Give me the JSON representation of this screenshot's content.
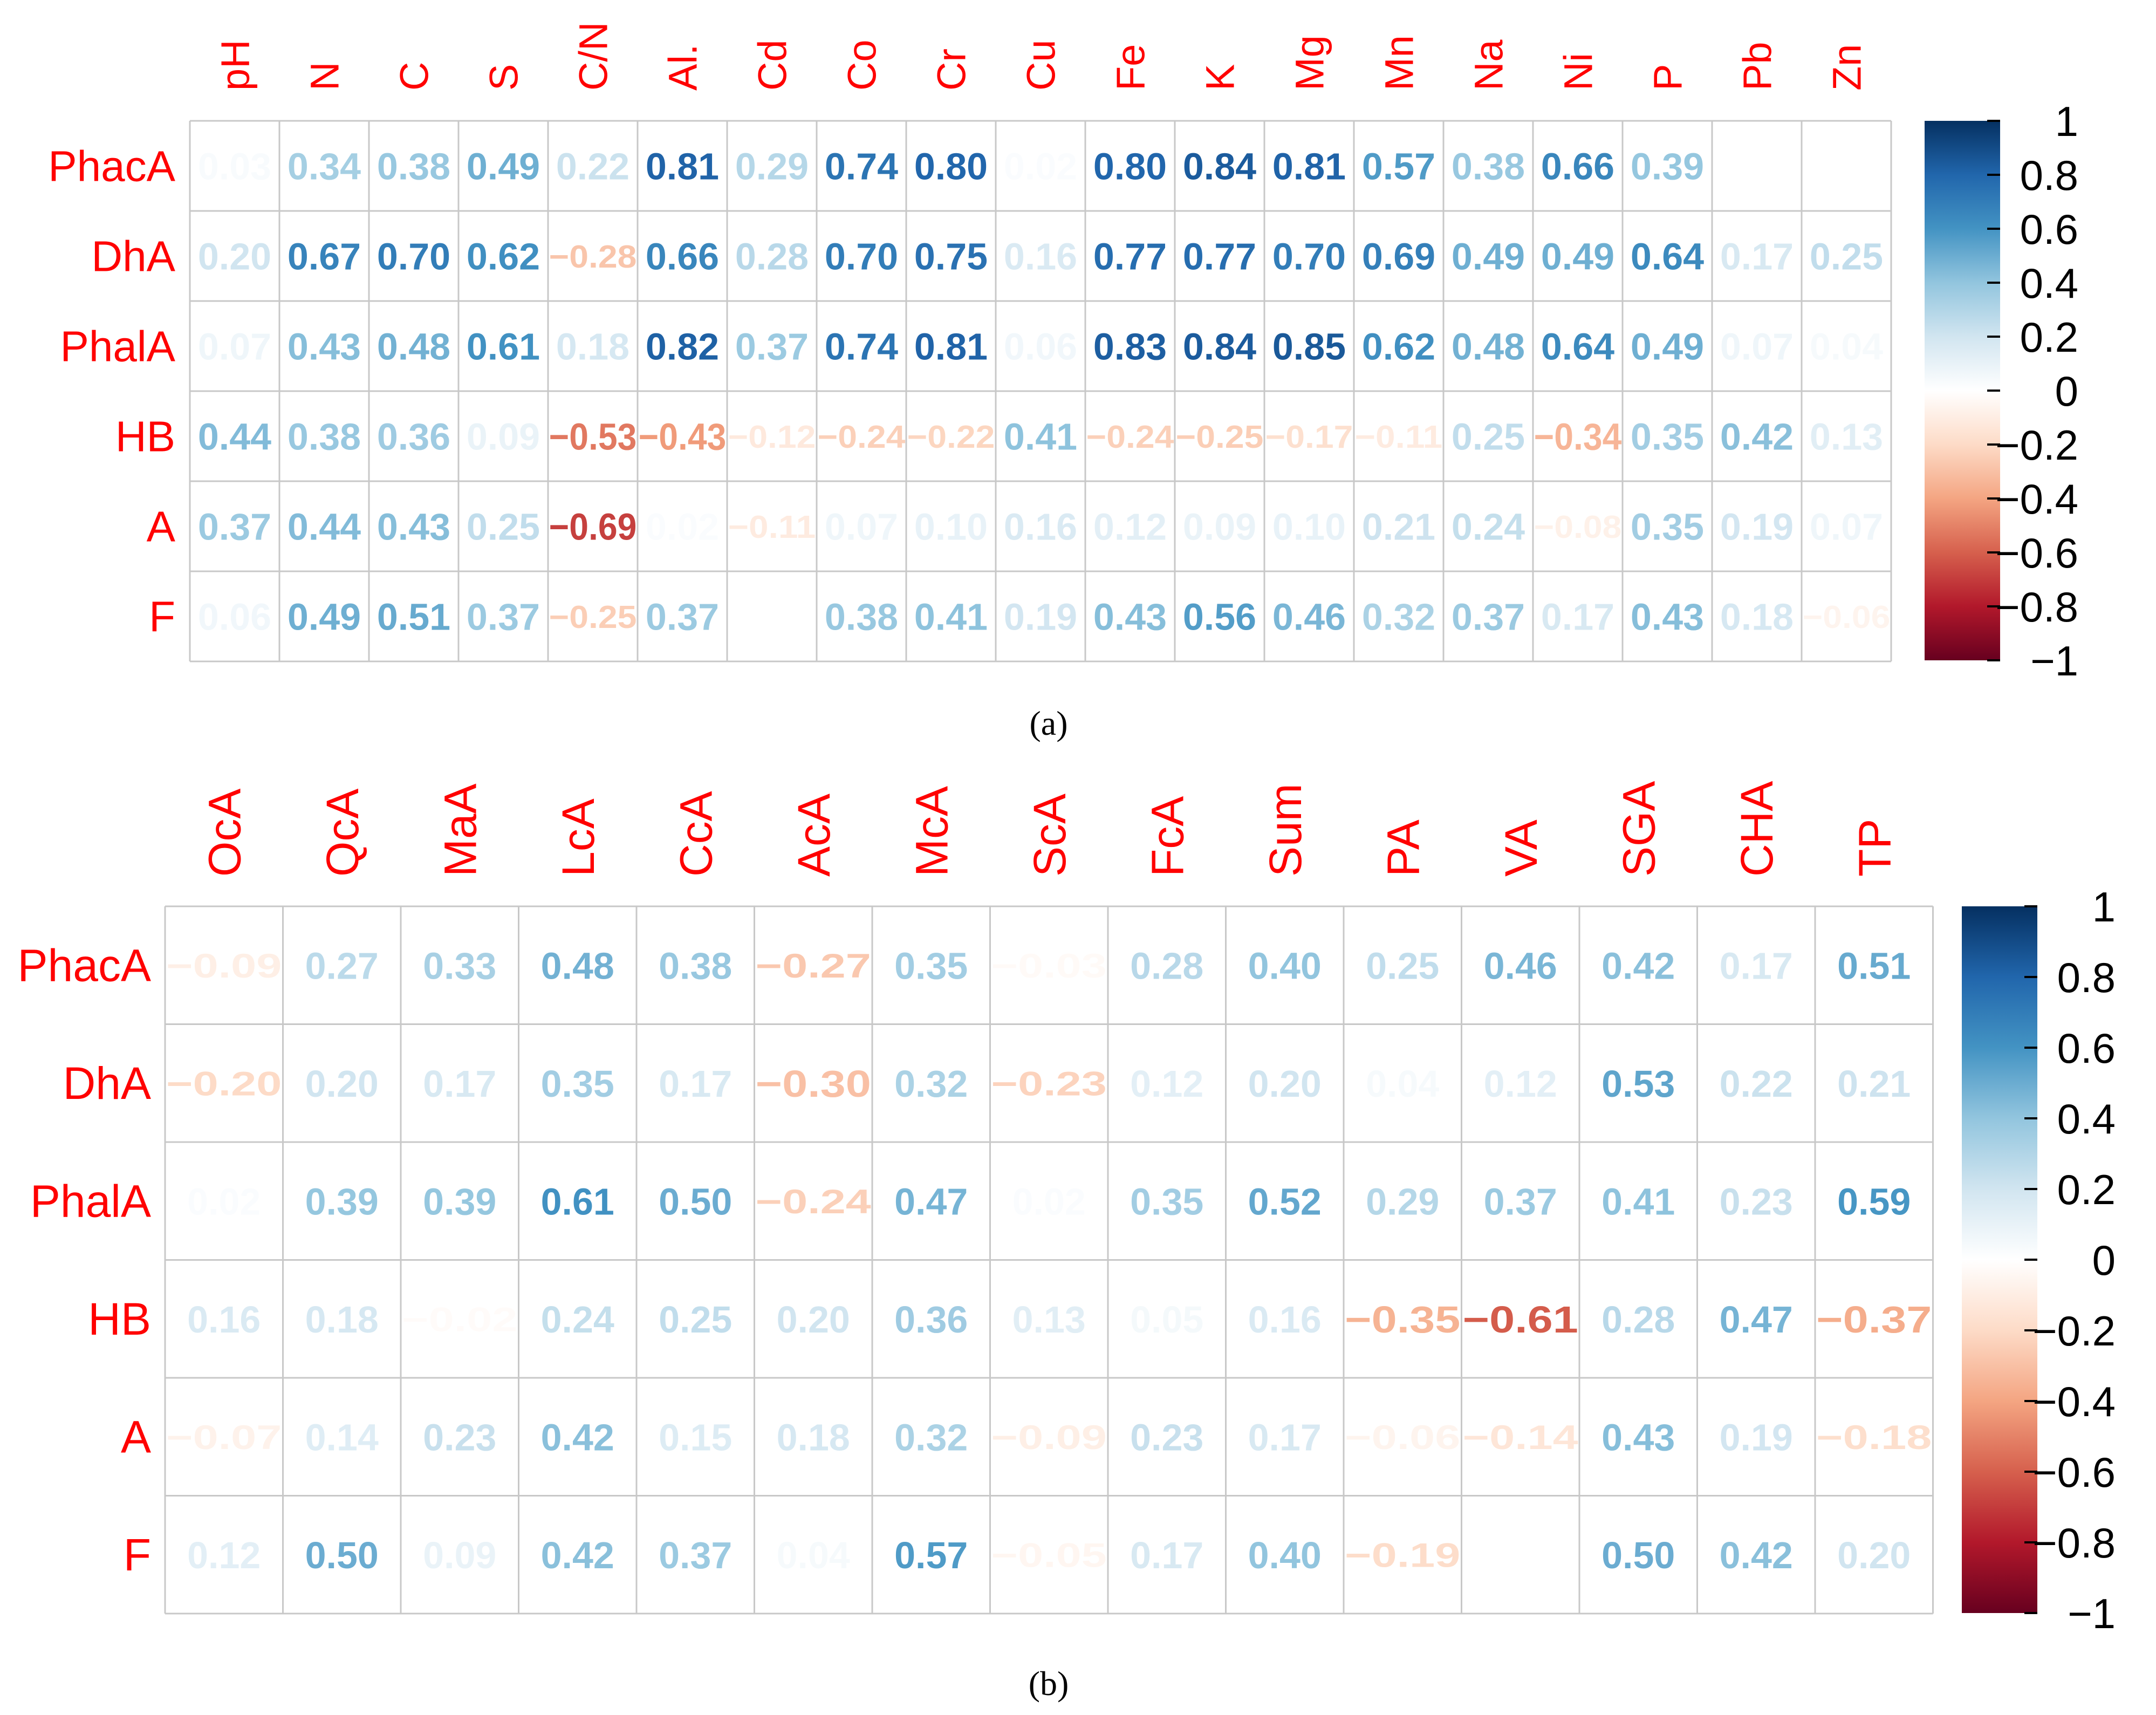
{
  "chart_data": [
    {
      "type": "heatmap",
      "caption": "(a)",
      "columns": [
        "pH",
        "N",
        "C",
        "S",
        "C/N",
        "Al.",
        "Cd",
        "Co",
        "Cr",
        "Cu",
        "Fe",
        "K",
        "Mg",
        "Mn",
        "Na",
        "Ni",
        "P",
        "Pb",
        "Zn"
      ],
      "rows": [
        "PhacA",
        "DhA",
        "PhalA",
        "HB",
        "A",
        "F"
      ],
      "values": [
        [
          0.03,
          0.34,
          0.38,
          0.49,
          0.22,
          0.81,
          0.29,
          0.74,
          0.8,
          0.02,
          0.8,
          0.84,
          0.81,
          0.57,
          0.38,
          0.66,
          0.39,
          0.0,
          0.01
        ],
        [
          0.2,
          0.67,
          0.7,
          0.62,
          -0.28,
          0.66,
          0.28,
          0.7,
          0.75,
          0.16,
          0.77,
          0.77,
          0.7,
          0.69,
          0.49,
          0.49,
          0.64,
          0.17,
          0.25
        ],
        [
          0.07,
          0.43,
          0.48,
          0.61,
          0.18,
          0.82,
          0.37,
          0.74,
          0.81,
          0.06,
          0.83,
          0.84,
          0.85,
          0.62,
          0.48,
          0.64,
          0.49,
          0.07,
          0.04
        ],
        [
          0.44,
          0.38,
          0.36,
          0.09,
          -0.53,
          -0.43,
          -0.12,
          -0.24,
          -0.22,
          0.41,
          -0.24,
          -0.25,
          -0.17,
          -0.11,
          0.25,
          -0.34,
          0.35,
          0.42,
          0.13
        ],
        [
          0.37,
          0.44,
          0.43,
          0.25,
          -0.69,
          0.02,
          -0.11,
          0.07,
          0.1,
          0.16,
          0.12,
          0.09,
          0.1,
          0.21,
          0.24,
          -0.08,
          0.35,
          0.19,
          0.07
        ],
        [
          0.06,
          0.49,
          0.51,
          0.37,
          -0.25,
          0.37,
          0.01,
          0.38,
          0.41,
          0.19,
          0.43,
          0.56,
          0.46,
          0.32,
          0.37,
          0.17,
          0.43,
          0.18,
          -0.06
        ]
      ],
      "value_labels": [
        [
          "0.03",
          "0.34",
          "0.38",
          "0.49",
          "0.22",
          "0.81",
          "0.29",
          "0.74",
          "0.80",
          "0.02",
          "0.80",
          "0.84",
          "0.81",
          "0.57",
          "0.38",
          "0.66",
          "0.39",
          "",
          ""
        ],
        [
          "0.20",
          "0.67",
          "0.70",
          "0.62",
          "−0.28",
          "0.66",
          "0.28",
          "0.70",
          "0.75",
          "0.16",
          "0.77",
          "0.77",
          "0.70",
          "0.69",
          "0.49",
          "0.49",
          "0.64",
          "0.17",
          "0.25"
        ],
        [
          "0.07",
          "0.43",
          "0.48",
          "0.61",
          "0.18",
          "0.82",
          "0.37",
          "0.74",
          "0.81",
          "0.06",
          "0.83",
          "0.84",
          "0.85",
          "0.62",
          "0.48",
          "0.64",
          "0.49",
          "0.07",
          "0.04"
        ],
        [
          "0.44",
          "0.38",
          "0.36",
          "0.09",
          "−0.53",
          "−0.43",
          "−0.12",
          "−0.24",
          "−0.22",
          "0.41",
          "−0.24",
          "−0.25",
          "−0.17",
          "−0.11",
          "0.25",
          "−0.34",
          "0.35",
          "0.42",
          "0.13"
        ],
        [
          "0.37",
          "0.44",
          "0.43",
          "0.25",
          "−0.69",
          "0.02",
          "−0.11",
          "0.07",
          "0.10",
          "0.16",
          "0.12",
          "0.09",
          "0.10",
          "0.21",
          "0.24",
          "−0.08",
          "0.35",
          "0.19",
          "0.07"
        ],
        [
          "0.06",
          "0.49",
          "0.51",
          "0.37",
          "−0.25",
          "0.37",
          "",
          "0.38",
          "0.41",
          "0.19",
          "0.43",
          "0.56",
          "0.46",
          "0.32",
          "0.37",
          "0.17",
          "0.43",
          "0.18",
          "−0.06"
        ]
      ],
      "color_scale": {
        "range": [
          -1,
          1
        ],
        "ticks": [
          "1",
          "0.8",
          "0.6",
          "0.4",
          "0.2",
          "0",
          "−0.2",
          "−0.4",
          "−0.6",
          "−0.8",
          "−1"
        ],
        "negative_end": "#67001f",
        "zero": "#ffffff",
        "positive_end": "#053061"
      },
      "grid": true,
      "legend": "right"
    },
    {
      "type": "heatmap",
      "caption": "(b)",
      "columns": [
        "OcA",
        "QcA",
        "MaA",
        "LcA",
        "CcA",
        "AcA",
        "McA",
        "ScA",
        "FcA",
        "Sum",
        "PA",
        "VA",
        "SGA",
        "CHA",
        "TP"
      ],
      "rows": [
        "PhacA",
        "DhA",
        "PhalA",
        "HB",
        "A",
        "F"
      ],
      "values": [
        [
          -0.09,
          0.27,
          0.33,
          0.48,
          0.38,
          -0.27,
          0.35,
          -0.03,
          0.28,
          0.4,
          0.25,
          0.46,
          0.42,
          0.17,
          0.51
        ],
        [
          -0.2,
          0.2,
          0.17,
          0.35,
          0.17,
          -0.3,
          0.32,
          -0.23,
          0.12,
          0.2,
          0.04,
          0.12,
          0.53,
          0.22,
          0.21
        ],
        [
          0.02,
          0.39,
          0.39,
          0.61,
          0.5,
          -0.24,
          0.47,
          0.02,
          0.35,
          0.52,
          0.29,
          0.37,
          0.41,
          0.23,
          0.59
        ],
        [
          0.16,
          0.18,
          -0.02,
          0.24,
          0.25,
          0.2,
          0.36,
          0.13,
          0.05,
          0.16,
          -0.35,
          -0.61,
          0.28,
          0.47,
          -0.37
        ],
        [
          -0.07,
          0.14,
          0.23,
          0.42,
          0.15,
          0.18,
          0.32,
          -0.09,
          0.23,
          0.17,
          -0.06,
          -0.14,
          0.43,
          0.19,
          -0.18
        ],
        [
          0.12,
          0.5,
          0.09,
          0.42,
          0.37,
          0.04,
          0.57,
          -0.05,
          0.17,
          0.4,
          -0.19,
          0.0,
          0.5,
          0.42,
          0.2
        ]
      ],
      "value_labels": [
        [
          "−0.09",
          "0.27",
          "0.33",
          "0.48",
          "0.38",
          "−0.27",
          "0.35",
          "−0.03",
          "0.28",
          "0.40",
          "0.25",
          "0.46",
          "0.42",
          "0.17",
          "0.51"
        ],
        [
          "−0.20",
          "0.20",
          "0.17",
          "0.35",
          "0.17",
          "−0.30",
          "0.32",
          "−0.23",
          "0.12",
          "0.20",
          "0.04",
          "0.12",
          "0.53",
          "0.22",
          "0.21"
        ],
        [
          "0.02",
          "0.39",
          "0.39",
          "0.61",
          "0.50",
          "−0.24",
          "0.47",
          "0.02",
          "0.35",
          "0.52",
          "0.29",
          "0.37",
          "0.41",
          "0.23",
          "0.59"
        ],
        [
          "0.16",
          "0.18",
          "−0.02",
          "0.24",
          "0.25",
          "0.20",
          "0.36",
          "0.13",
          "0.05",
          "0.16",
          "−0.35",
          "−0.61",
          "0.28",
          "0.47",
          "−0.37"
        ],
        [
          "−0.07",
          "0.14",
          "0.23",
          "0.42",
          "0.15",
          "0.18",
          "0.32",
          "−0.09",
          "0.23",
          "0.17",
          "−0.06",
          "−0.14",
          "0.43",
          "0.19",
          "−0.18"
        ],
        [
          "0.12",
          "0.50",
          "0.09",
          "0.42",
          "0.37",
          "0.04",
          "0.57",
          "−0.05",
          "0.17",
          "0.40",
          "−0.19",
          "",
          "0.50",
          "0.42",
          "0.20"
        ]
      ],
      "color_scale": {
        "range": [
          -1,
          1
        ],
        "ticks": [
          "1",
          "0.8",
          "0.6",
          "0.4",
          "0.2",
          "0",
          "−0.2",
          "−0.4",
          "−0.6",
          "−0.8",
          "−1"
        ],
        "negative_end": "#67001f",
        "zero": "#ffffff",
        "positive_end": "#053061"
      },
      "grid": true,
      "legend": "right"
    }
  ]
}
